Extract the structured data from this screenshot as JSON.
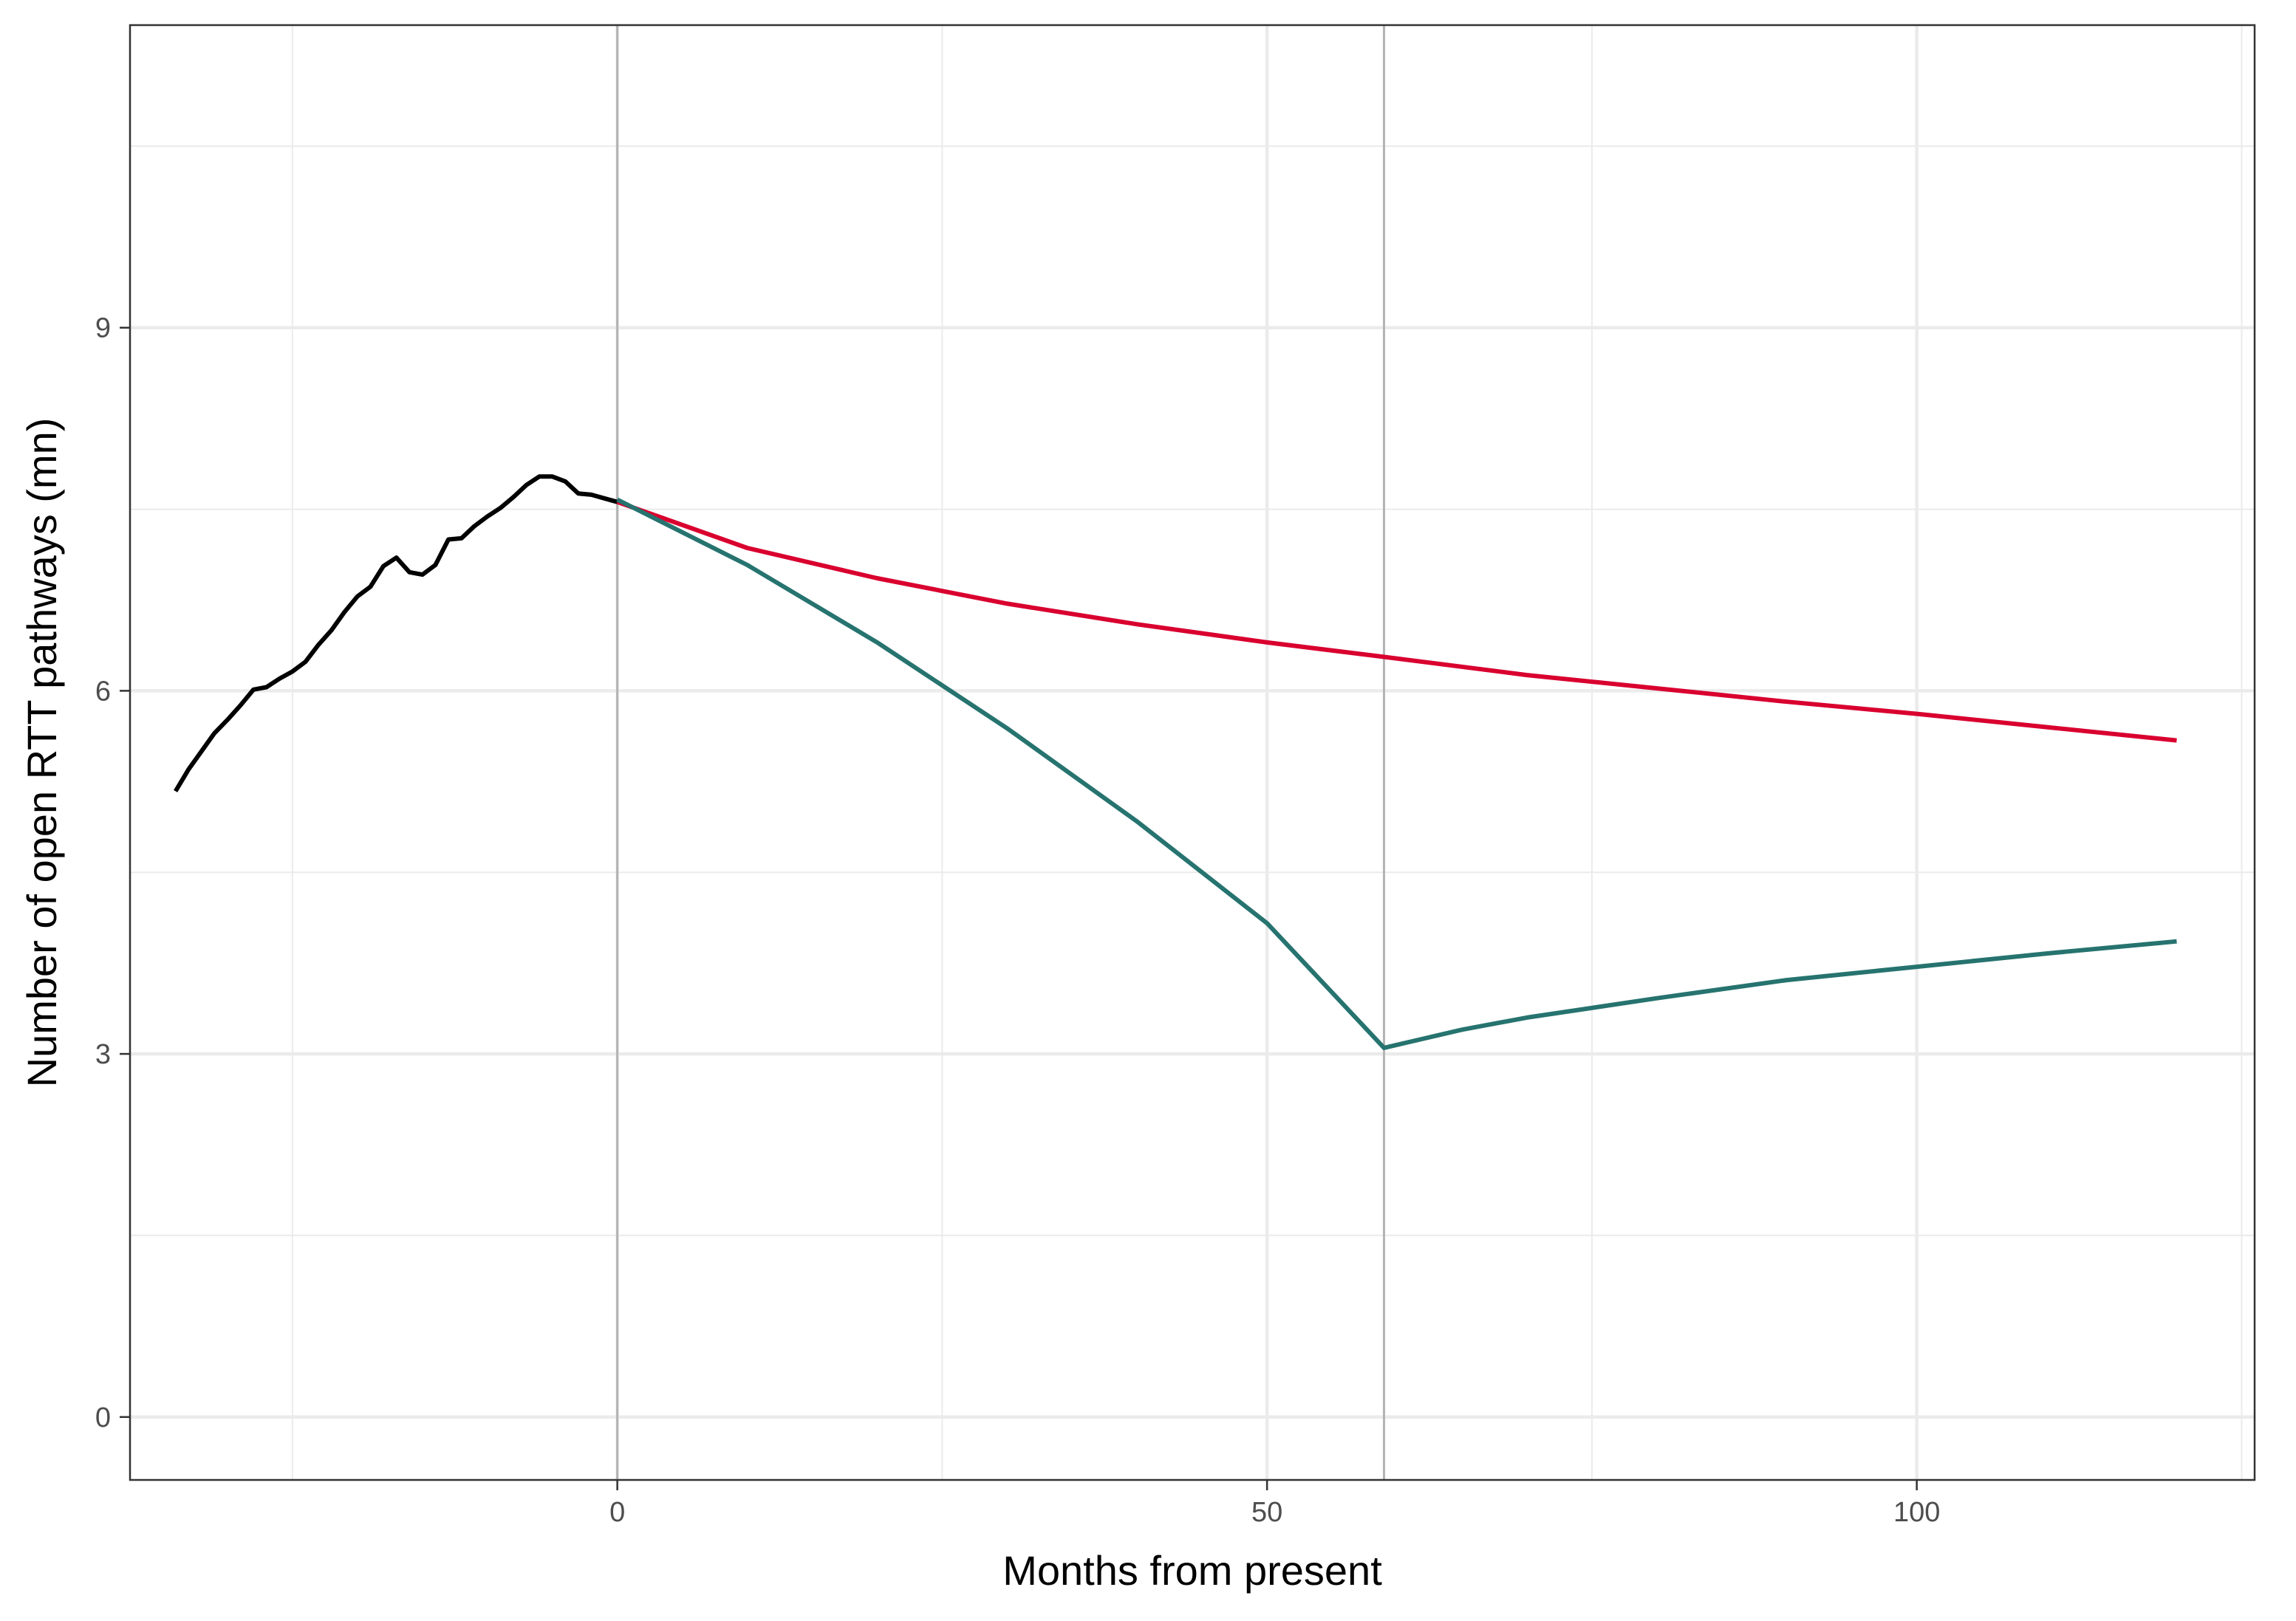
{
  "chart_data": {
    "type": "line",
    "title": "",
    "xlabel": "Months from present",
    "ylabel": "Number of open RTT pathways (mn)",
    "xlim": [
      -37.5,
      126
    ],
    "ylim": [
      -0.52,
      11.5
    ],
    "x_ticks": [
      0,
      50,
      100
    ],
    "x_tick_labels": [
      "0",
      "50",
      "100"
    ],
    "y_ticks": [
      0,
      3,
      6,
      9
    ],
    "y_tick_labels": [
      "0",
      "3",
      "6",
      "9"
    ],
    "x_minor_gridlines": [
      -25,
      25,
      75,
      125
    ],
    "y_minor_gridlines": [
      1.5,
      4.5,
      7.5,
      10.5
    ],
    "vertical_reference_lines": [
      0,
      59
    ],
    "grid": true,
    "legend": "none",
    "colors": {
      "observed": "#000000",
      "scenario_a": "#d9002f",
      "scenario_b": "#26736f",
      "reference_line": "#b3b3b3"
    },
    "series": [
      {
        "key": "observed",
        "x": [
          -34,
          -33,
          -32,
          -31,
          -30,
          -29,
          -28,
          -27,
          -26,
          -25,
          -24,
          -23,
          -22,
          -21,
          -20,
          -19,
          -18,
          -17,
          -16,
          -15,
          -14,
          -13,
          -12,
          -11,
          -10,
          -9,
          -8,
          -7,
          -6,
          -5,
          -4,
          -3,
          -2,
          -1,
          0
        ],
        "values": [
          5.17,
          5.35,
          5.5,
          5.65,
          5.76,
          5.88,
          6.01,
          6.03,
          6.1,
          6.16,
          6.24,
          6.38,
          6.5,
          6.65,
          6.78,
          6.86,
          7.03,
          7.1,
          6.98,
          6.96,
          7.04,
          7.25,
          7.26,
          7.36,
          7.44,
          7.51,
          7.6,
          7.7,
          7.77,
          7.77,
          7.73,
          7.63,
          7.62,
          7.59,
          7.56
        ]
      },
      {
        "key": "scenario_a",
        "x": [
          0,
          10,
          20,
          30,
          40,
          50,
          59,
          70,
          80,
          90,
          100,
          110,
          120
        ],
        "values": [
          7.56,
          7.18,
          6.93,
          6.72,
          6.55,
          6.4,
          6.28,
          6.13,
          6.02,
          5.91,
          5.81,
          5.7,
          5.59
        ]
      },
      {
        "key": "scenario_b",
        "x": [
          0,
          10,
          20,
          30,
          40,
          50,
          59,
          65,
          70,
          80,
          90,
          100,
          110,
          120
        ],
        "values": [
          7.58,
          7.04,
          6.4,
          5.69,
          4.92,
          4.08,
          3.05,
          3.2,
          3.3,
          3.46,
          3.61,
          3.72,
          3.83,
          3.93
        ]
      }
    ]
  }
}
